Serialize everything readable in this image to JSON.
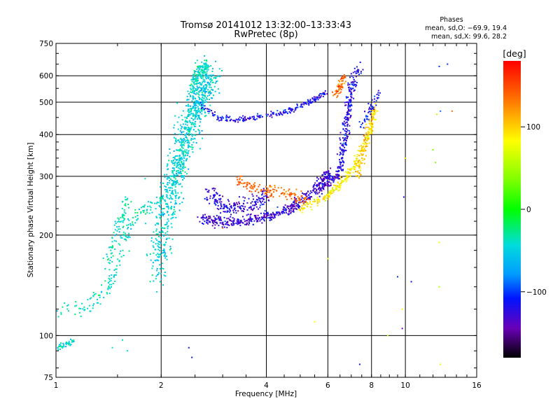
{
  "chart_data": {
    "type": "scatter",
    "title": "Tromsø 20141012 13:32:00–13:33:43",
    "subtitle": "RwPretec (8p)",
    "xlabel": "Frequency [MHz]",
    "ylabel": "Stationary phase Virtual Height [km]",
    "x_scale": "log",
    "y_scale": "log",
    "xlim": [
      1,
      16
    ],
    "ylim": [
      75,
      750
    ],
    "x_ticks": [
      1,
      2,
      4,
      6,
      8,
      10,
      16
    ],
    "y_ticks": [
      75,
      100,
      200,
      300,
      400,
      500,
      600,
      750
    ],
    "grid": true,
    "stats": {
      "heading": "Phases",
      "o_line": "mean, sd,O: −69.9, 19.4",
      "x_line": "mean, sd,X:  99.6, 28.2"
    },
    "colorbar": {
      "label": "[deg]",
      "range": [
        -180,
        180
      ],
      "ticks": [
        100,
        0,
        -100
      ],
      "tick_labels": [
        "100",
        "0",
        "−100"
      ]
    },
    "traces": [
      {
        "x": [
          1.0,
          1.08,
          1.18,
          1.3,
          1.42,
          1.48,
          1.52,
          1.58,
          1.66,
          1.75,
          1.9,
          2.05,
          2.2,
          2.3,
          2.4,
          2.46,
          2.5,
          2.55
        ],
        "y": [
          118,
          119,
          120,
          128,
          140,
          155,
          175,
          200,
          220,
          235,
          245,
          260,
          300,
          350,
          420,
          500,
          580,
          650
        ],
        "phase": -40,
        "spread": 0.05,
        "n": 260
      },
      {
        "x": [
          1.0,
          1.06,
          1.12
        ],
        "y": [
          92,
          94,
          96
        ],
        "phase": -45,
        "spread": 0.02,
        "n": 40
      },
      {
        "x": [
          1.4,
          1.45,
          1.5,
          1.55,
          1.6
        ],
        "y": [
          160,
          180,
          205,
          230,
          255
        ],
        "phase": -38,
        "spread": 0.05,
        "n": 80
      },
      {
        "x": [
          1.95,
          2.05,
          2.15,
          2.25,
          2.35,
          2.45,
          2.55,
          2.65,
          2.75
        ],
        "y": [
          150,
          220,
          280,
          330,
          390,
          450,
          500,
          560,
          610
        ],
        "phase": -50,
        "spread": 0.12,
        "n": 900
      },
      {
        "x": [
          2.45,
          2.6,
          2.7
        ],
        "y": [
          560,
          620,
          650
        ],
        "phase": -40,
        "spread": 0.04,
        "n": 90
      },
      {
        "x": [
          2.6,
          2.8,
          3.0,
          3.3,
          3.6,
          3.9,
          4.2,
          4.6,
          5.0,
          5.4,
          5.8,
          6.0
        ],
        "y": [
          226,
          220,
          218,
          219,
          221,
          225,
          230,
          238,
          250,
          268,
          290,
          310
        ],
        "phase": -125,
        "spread": 0.04,
        "n": 450
      },
      {
        "x": [
          2.7,
          3.0,
          3.3,
          3.7,
          4.0
        ],
        "y": [
          270,
          245,
          240,
          250,
          262
        ],
        "phase": -120,
        "spread": 0.06,
        "n": 200
      },
      {
        "x": [
          2.6,
          2.9,
          3.2,
          3.6,
          4.1,
          4.6,
          5.1,
          5.5,
          5.9
        ],
        "y": [
          490,
          450,
          442,
          447,
          457,
          470,
          490,
          510,
          535
        ],
        "phase": -115,
        "spread": 0.02,
        "n": 220
      },
      {
        "x": [
          3.3,
          3.6,
          4.0,
          4.4,
          4.8,
          5.2
        ],
        "y": [
          290,
          280,
          270,
          268,
          262,
          255
        ],
        "phase": 140,
        "spread": 0.04,
        "n": 140
      },
      {
        "x": [
          5.0,
          5.5,
          6.0,
          6.4,
          6.8,
          7.2,
          7.6,
          8.0,
          8.2
        ],
        "y": [
          240,
          250,
          262,
          280,
          300,
          330,
          370,
          420,
          480
        ],
        "phase": 90,
        "spread": 0.03,
        "n": 260
      },
      {
        "x": [
          5.6,
          6.0,
          6.4,
          6.6,
          6.8,
          6.9,
          7.0
        ],
        "y": [
          270,
          285,
          300,
          340,
          400,
          480,
          620
        ],
        "phase": -120,
        "spread": 0.03,
        "n": 220
      },
      {
        "x": [
          6.5,
          6.7,
          6.9,
          7.1,
          7.4
        ],
        "y": [
          350,
          420,
          500,
          560,
          640
        ],
        "phase": -110,
        "spread": 0.04,
        "n": 100
      },
      {
        "x": [
          6.3,
          6.5,
          6.7
        ],
        "y": [
          520,
          560,
          600
        ],
        "phase": 140,
        "spread": 0.03,
        "n": 60
      },
      {
        "x": [
          7.3,
          7.5,
          7.7,
          7.9,
          8.1
        ],
        "y": [
          300,
          340,
          380,
          430,
          480
        ],
        "phase": 110,
        "spread": 0.04,
        "n": 90
      },
      {
        "x": [
          7.5,
          7.8,
          8.1,
          8.4
        ],
        "y": [
          420,
          460,
          500,
          540
        ],
        "phase": -110,
        "spread": 0.03,
        "n": 50
      }
    ],
    "points": [
      {
        "x": 12.5,
        "y": 640,
        "phase": -100
      },
      {
        "x": 13.2,
        "y": 650,
        "phase": -100
      },
      {
        "x": 12.3,
        "y": 460,
        "phase": 60
      },
      {
        "x": 12.6,
        "y": 470,
        "phase": -90
      },
      {
        "x": 13.6,
        "y": 470,
        "phase": 140
      },
      {
        "x": 12.0,
        "y": 360,
        "phase": 40
      },
      {
        "x": 12.2,
        "y": 330,
        "phase": 40
      },
      {
        "x": 10.0,
        "y": 340,
        "phase": 100
      },
      {
        "x": 9.9,
        "y": 260,
        "phase": -120
      },
      {
        "x": 9.5,
        "y": 150,
        "phase": -100
      },
      {
        "x": 10.4,
        "y": 145,
        "phase": -110
      },
      {
        "x": 9.8,
        "y": 120,
        "phase": 80
      },
      {
        "x": 9.8,
        "y": 105,
        "phase": -140
      },
      {
        "x": 12.5,
        "y": 190,
        "phase": 80
      },
      {
        "x": 12.5,
        "y": 140,
        "phase": 60
      },
      {
        "x": 12.6,
        "y": 82,
        "phase": 80
      },
      {
        "x": 8.9,
        "y": 100,
        "phase": 60
      },
      {
        "x": 7.4,
        "y": 82,
        "phase": -110
      },
      {
        "x": 5.5,
        "y": 110,
        "phase": 80
      },
      {
        "x": 6.0,
        "y": 170,
        "phase": 80
      },
      {
        "x": 3.0,
        "y": 210,
        "phase": 140
      },
      {
        "x": 3.4,
        "y": 300,
        "phase": 140
      },
      {
        "x": 1.6,
        "y": 90,
        "phase": -40
      },
      {
        "x": 1.45,
        "y": 92,
        "phase": -40
      },
      {
        "x": 1.55,
        "y": 97,
        "phase": -40
      },
      {
        "x": 2.4,
        "y": 92,
        "phase": -110
      },
      {
        "x": 2.45,
        "y": 86,
        "phase": -110
      },
      {
        "x": 1.8,
        "y": 295,
        "phase": -40
      }
    ]
  }
}
